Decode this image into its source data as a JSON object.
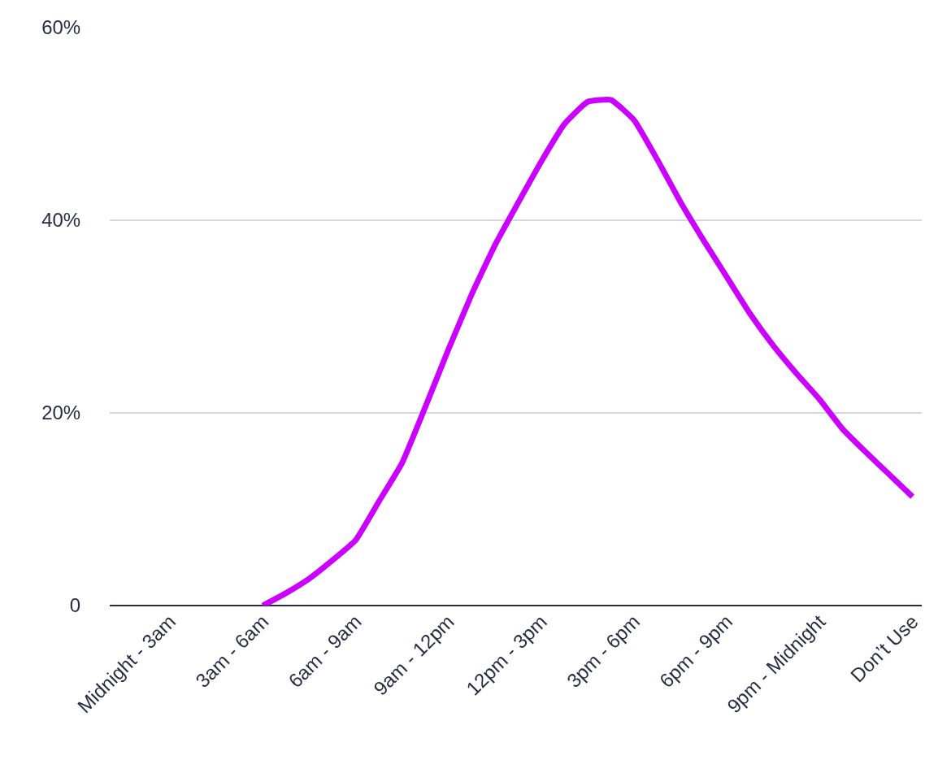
{
  "chart_data": {
    "type": "line",
    "categories": [
      "Midnight - 3am",
      null,
      null,
      null,
      "3am - 6am",
      null,
      null,
      null,
      "6am - 9am",
      null,
      null,
      null,
      "9am - 12pm",
      null,
      null,
      null,
      "12pm - 3pm",
      null,
      null,
      null,
      "3pm - 6pm",
      null,
      null,
      null,
      "6pm - 9pm",
      null,
      null,
      null,
      "9pm - Midnight",
      null,
      null,
      null,
      "Don’t Use"
    ],
    "series": [
      {
        "color": "#cc00ff",
        "values": [
          null,
          null,
          null,
          null,
          0,
          1.3,
          2.8,
          4.7,
          6.8,
          10.8,
          14.8,
          20.6,
          26.6,
          32.3,
          37.4,
          41.8,
          46.1,
          50.0,
          52.3,
          52.5,
          50.4,
          46.3,
          41.9,
          37.9,
          34.1,
          30.3,
          27.0,
          24.1,
          21.4,
          18.3,
          15.9,
          13.6,
          11.3
        ]
      }
    ],
    "ylim": [
      0,
      60
    ],
    "yticks": [
      {
        "value": 0,
        "label": "0"
      },
      {
        "value": 20,
        "label": "20%"
      },
      {
        "value": 40,
        "label": "40%"
      },
      {
        "value": 60,
        "label": "60%"
      }
    ],
    "grid": "y",
    "marker": "none",
    "line_style": "solid"
  }
}
